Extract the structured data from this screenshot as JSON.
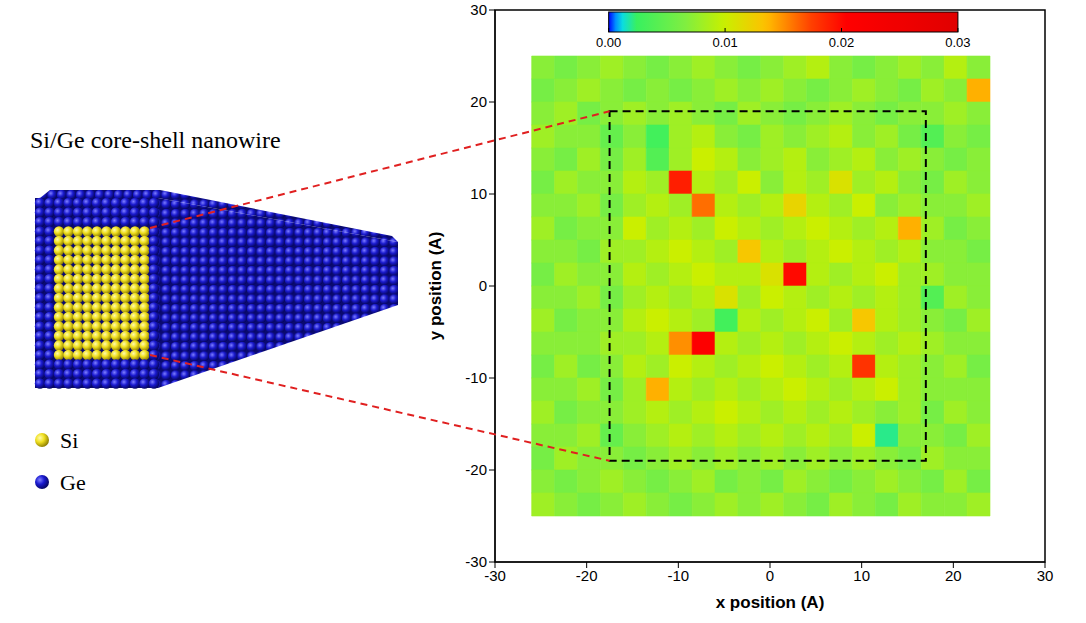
{
  "chart_data": {
    "type": "heatmap",
    "xlabel": "x position (A)",
    "ylabel": "y position (A)",
    "xlim": [
      -30,
      30
    ],
    "ylim": [
      -30,
      30
    ],
    "xticks": [
      -30,
      -20,
      -10,
      0,
      10,
      20,
      30
    ],
    "yticks": [
      -30,
      -20,
      -10,
      0,
      10,
      20,
      30
    ],
    "x": [
      -24.75,
      -22.25,
      -19.75,
      -17.25,
      -14.75,
      -12.25,
      -9.75,
      -7.25,
      -4.75,
      -2.25,
      0.25,
      2.75,
      5.25,
      7.75,
      10.25,
      12.75,
      15.25,
      17.75,
      20.25,
      22.75
    ],
    "y": [
      23.75,
      21.25,
      18.75,
      16.25,
      13.75,
      11.25,
      8.75,
      6.25,
      3.75,
      1.25,
      -1.25,
      -3.75,
      -6.25,
      -8.75,
      -11.25,
      -13.75,
      -16.25,
      -18.75,
      -21.25,
      -23.75
    ],
    "values": [
      [
        0.007,
        0.006,
        0.007,
        0.008,
        0.007,
        0.006,
        0.007,
        0.008,
        0.007,
        0.006,
        0.007,
        0.008,
        0.009,
        0.007,
        0.006,
        0.007,
        0.008,
        0.007,
        0.009,
        0.007
      ],
      [
        0.006,
        0.007,
        0.008,
        0.007,
        0.006,
        0.007,
        0.006,
        0.007,
        0.008,
        0.007,
        0.008,
        0.007,
        0.006,
        0.007,
        0.008,
        0.007,
        0.006,
        0.008,
        0.007,
        0.014
      ],
      [
        0.007,
        0.008,
        0.006,
        0.007,
        0.008,
        0.007,
        0.008,
        0.007,
        0.006,
        0.008,
        0.007,
        0.006,
        0.007,
        0.008,
        0.007,
        0.006,
        0.007,
        0.007,
        0.008,
        0.007
      ],
      [
        0.008,
        0.007,
        0.007,
        0.005,
        0.007,
        0.003,
        0.008,
        0.009,
        0.007,
        0.006,
        0.008,
        0.007,
        0.008,
        0.009,
        0.007,
        0.008,
        0.006,
        0.004,
        0.007,
        0.006
      ],
      [
        0.007,
        0.006,
        0.008,
        0.006,
        0.008,
        0.004,
        0.008,
        0.01,
        0.009,
        0.007,
        0.008,
        0.009,
        0.007,
        0.008,
        0.009,
        0.007,
        0.008,
        0.007,
        0.006,
        0.007
      ],
      [
        0.006,
        0.008,
        0.007,
        0.007,
        0.009,
        0.008,
        0.019,
        0.009,
        0.008,
        0.01,
        0.007,
        0.009,
        0.008,
        0.011,
        0.008,
        0.009,
        0.007,
        0.006,
        0.008,
        0.007
      ],
      [
        0.007,
        0.007,
        0.008,
        0.006,
        0.008,
        0.009,
        0.008,
        0.016,
        0.009,
        0.008,
        0.009,
        0.012,
        0.009,
        0.008,
        0.01,
        0.007,
        0.008,
        0.007,
        0.007,
        0.008
      ],
      [
        0.008,
        0.006,
        0.007,
        0.007,
        0.01,
        0.008,
        0.009,
        0.008,
        0.01,
        0.009,
        0.008,
        0.009,
        0.01,
        0.009,
        0.008,
        0.009,
        0.014,
        0.008,
        0.006,
        0.007
      ],
      [
        0.007,
        0.007,
        0.006,
        0.008,
        0.008,
        0.009,
        0.01,
        0.009,
        0.008,
        0.013,
        0.009,
        0.008,
        0.009,
        0.01,
        0.009,
        0.008,
        0.009,
        0.007,
        0.007,
        0.006
      ],
      [
        0.006,
        0.008,
        0.007,
        0.007,
        0.009,
        0.008,
        0.009,
        0.01,
        0.009,
        0.009,
        0.011,
        0.02,
        0.009,
        0.008,
        0.009,
        0.01,
        0.008,
        0.008,
        0.007,
        0.007
      ],
      [
        0.007,
        0.007,
        0.008,
        0.006,
        0.008,
        0.009,
        0.008,
        0.009,
        0.011,
        0.008,
        0.01,
        0.009,
        0.008,
        0.009,
        0.008,
        0.009,
        0.008,
        0.004,
        0.008,
        0.007
      ],
      [
        0.008,
        0.006,
        0.007,
        0.007,
        0.009,
        0.01,
        0.009,
        0.008,
        0.003,
        0.009,
        0.008,
        0.009,
        0.01,
        0.008,
        0.013,
        0.009,
        0.008,
        0.007,
        0.006,
        0.008
      ],
      [
        0.007,
        0.007,
        0.007,
        0.008,
        0.008,
        0.009,
        0.015,
        0.021,
        0.009,
        0.008,
        0.009,
        0.008,
        0.009,
        0.01,
        0.009,
        0.008,
        0.009,
        0.008,
        0.007,
        0.007
      ],
      [
        0.006,
        0.008,
        0.006,
        0.007,
        0.009,
        0.008,
        0.01,
        0.009,
        0.008,
        0.009,
        0.01,
        0.009,
        0.008,
        0.009,
        0.018,
        0.009,
        0.008,
        0.007,
        0.008,
        0.006
      ],
      [
        0.007,
        0.007,
        0.008,
        0.006,
        0.008,
        0.014,
        0.009,
        0.008,
        0.009,
        0.008,
        0.009,
        0.01,
        0.009,
        0.008,
        0.009,
        0.01,
        0.008,
        0.007,
        0.007,
        0.007
      ],
      [
        0.008,
        0.006,
        0.007,
        0.007,
        0.008,
        0.009,
        0.008,
        0.009,
        0.01,
        0.009,
        0.008,
        0.009,
        0.008,
        0.009,
        0.008,
        0.007,
        0.008,
        0.006,
        0.008,
        0.007
      ],
      [
        0.007,
        0.007,
        0.008,
        0.005,
        0.007,
        0.008,
        0.009,
        0.008,
        0.009,
        0.008,
        0.009,
        0.008,
        0.009,
        0.008,
        0.01,
        0.002,
        0.007,
        0.007,
        0.006,
        0.008
      ],
      [
        0.006,
        0.008,
        0.007,
        0.007,
        0.006,
        0.007,
        0.008,
        0.007,
        0.008,
        0.007,
        0.008,
        0.007,
        0.008,
        0.007,
        0.008,
        0.007,
        0.006,
        0.008,
        0.007,
        0.007
      ],
      [
        0.007,
        0.006,
        0.007,
        0.008,
        0.007,
        0.006,
        0.007,
        0.008,
        0.006,
        0.007,
        0.006,
        0.008,
        0.007,
        0.006,
        0.007,
        0.008,
        0.007,
        0.006,
        0.008,
        0.006
      ],
      [
        0.008,
        0.007,
        0.006,
        0.007,
        0.008,
        0.007,
        0.006,
        0.007,
        0.008,
        0.007,
        0.008,
        0.007,
        0.006,
        0.008,
        0.007,
        0.006,
        0.008,
        0.007,
        0.007,
        0.008
      ]
    ],
    "colorbar": {
      "range": [
        0,
        0.03
      ],
      "ticks": [
        {
          "value": 0,
          "label": "0.00"
        },
        {
          "value": 0.01,
          "label": "0.01"
        },
        {
          "value": 0.02,
          "label": "0.02"
        },
        {
          "value": 0.03,
          "label": "0.03"
        }
      ]
    },
    "core_boundary": {
      "x": [
        -17.5,
        17
      ],
      "y": [
        -19,
        19
      ]
    }
  },
  "diagram": {
    "title": "Si/Ge core-shell nanowire",
    "legend": [
      {
        "label": "Si",
        "color": "#f0e020"
      },
      {
        "label": "Ge",
        "color": "#1a1ad0"
      }
    ]
  }
}
